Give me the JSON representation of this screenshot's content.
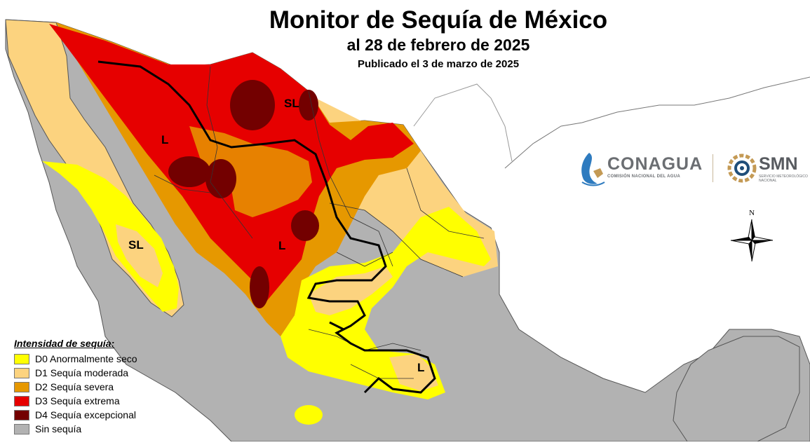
{
  "title": {
    "main": "Monitor de Sequía de México",
    "date": "al 28 de febrero de 2025",
    "published": "Publicado el 3 de marzo de 2025"
  },
  "logos": {
    "conagua_name": "CONAGUA",
    "conagua_subtitle": "COMISIÓN NACIONAL DEL AGUA",
    "smn_name": "SMN",
    "smn_subtitle": "SERVICIO METEOROLÓGICO NACIONAL"
  },
  "compass": {
    "north_label": "N"
  },
  "legend": {
    "title": "Intensidad de sequía:",
    "items": [
      {
        "label": "D0 Anormalmente seco",
        "color": "#ffff00"
      },
      {
        "label": "D1 Sequía moderada",
        "color": "#fcd37f"
      },
      {
        "label": "D2 Sequía severa",
        "color": "#e69800"
      },
      {
        "label": "D3 Sequía extrema",
        "color": "#e60000"
      },
      {
        "label": "D4 Sequía excepcional",
        "color": "#730000"
      },
      {
        "label": "Sin sequía",
        "color": "#b2b2b2"
      }
    ]
  },
  "impact_labels": {
    "sl_north": "SL",
    "l_northwest": "L",
    "sl_baja": "SL",
    "l_center": "L",
    "l_south": "L"
  }
}
